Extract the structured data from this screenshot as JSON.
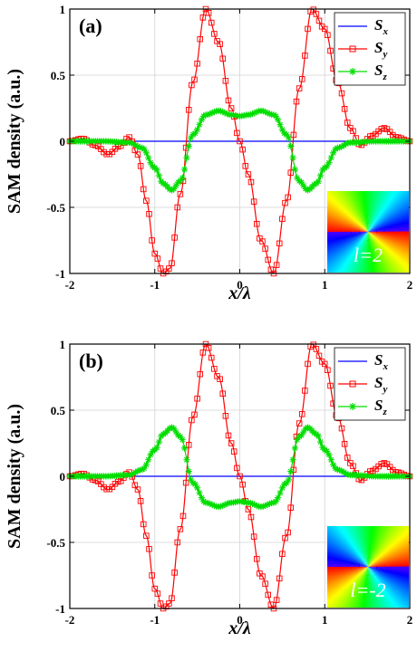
{
  "chart_data": [
    {
      "type": "line",
      "panel_label": "(a)",
      "xlabel": "x/λ",
      "ylabel": "SAM density (a.u.)",
      "xlim": [
        -2,
        2
      ],
      "ylim": [
        -1,
        1
      ],
      "xticks": [
        "-2",
        "-1",
        "0",
        "1",
        "2"
      ],
      "yticks": [
        "-1",
        "-0.5",
        "0",
        "0.5",
        "1"
      ],
      "grid": true,
      "legend_position": "top-right",
      "inset_label": "l=2",
      "l": 2,
      "series": [
        {
          "name": "Sx",
          "color": "#0000ff",
          "marker": "none",
          "x": [
            -2,
            2
          ],
          "y": [
            0,
            0
          ]
        },
        {
          "name": "Sy",
          "color": "#ff0000",
          "marker": "square",
          "x": [
            -2,
            -1.85,
            -1.7,
            -1.55,
            -1.42,
            -1.3,
            -1.2,
            -1.1,
            -1.0,
            -0.9,
            -0.82,
            -0.7,
            -0.55,
            -0.4,
            -0.25,
            -0.1,
            0.0,
            0.1,
            0.25,
            0.4,
            0.55,
            0.7,
            0.85,
            1.0,
            1.15,
            1.3,
            1.42,
            1.55,
            1.7,
            1.85,
            2
          ],
          "y": [
            0,
            0.02,
            -0.03,
            -0.1,
            -0.04,
            0.03,
            -0.1,
            -0.45,
            -0.85,
            -1.0,
            -0.96,
            -0.4,
            0.45,
            1.0,
            0.75,
            0.25,
            0.0,
            -0.25,
            -0.75,
            -1.0,
            -0.45,
            0.4,
            1.0,
            0.85,
            0.45,
            0.1,
            -0.03,
            0.04,
            0.1,
            0.03,
            0
          ]
        },
        {
          "name": "Sz",
          "color": "#00dd00",
          "marker": "star",
          "x": [
            -2,
            -1.6,
            -1.3,
            -1.15,
            -1.0,
            -0.9,
            -0.8,
            -0.7,
            -0.55,
            -0.4,
            -0.25,
            -0.1,
            0.0,
            0.1,
            0.25,
            0.4,
            0.55,
            0.7,
            0.8,
            0.9,
            1.0,
            1.15,
            1.3,
            1.6,
            2
          ],
          "y": [
            0,
            0,
            -0.01,
            -0.05,
            -0.2,
            -0.32,
            -0.37,
            -0.3,
            0.05,
            0.2,
            0.23,
            0.2,
            0.19,
            0.2,
            0.23,
            0.2,
            0.05,
            -0.3,
            -0.37,
            -0.32,
            -0.2,
            -0.05,
            -0.01,
            0,
            0
          ]
        }
      ]
    },
    {
      "type": "line",
      "panel_label": "(b)",
      "xlabel": "x/λ",
      "ylabel": "SAM density (a.u.)",
      "xlim": [
        -2,
        2
      ],
      "ylim": [
        -1,
        1
      ],
      "xticks": [
        "-2",
        "-1",
        "0",
        "1",
        "2"
      ],
      "yticks": [
        "-1",
        "-0.5",
        "0",
        "0.5",
        "1"
      ],
      "grid": true,
      "legend_position": "top-right",
      "inset_label": "l=-2",
      "l": -2,
      "series": [
        {
          "name": "Sx",
          "color": "#0000ff",
          "marker": "none",
          "x": [
            -2,
            2
          ],
          "y": [
            0,
            0
          ]
        },
        {
          "name": "Sy",
          "color": "#ff0000",
          "marker": "square",
          "x": [
            -2,
            -1.85,
            -1.7,
            -1.55,
            -1.42,
            -1.3,
            -1.2,
            -1.1,
            -1.0,
            -0.9,
            -0.82,
            -0.7,
            -0.55,
            -0.4,
            -0.25,
            -0.1,
            0.0,
            0.1,
            0.25,
            0.4,
            0.55,
            0.7,
            0.85,
            1.0,
            1.15,
            1.3,
            1.42,
            1.55,
            1.7,
            1.85,
            2
          ],
          "y": [
            0,
            0.02,
            -0.03,
            -0.1,
            -0.04,
            0.03,
            -0.1,
            -0.45,
            -0.85,
            -1.0,
            -0.96,
            -0.4,
            0.45,
            1.0,
            0.75,
            0.25,
            0.0,
            -0.25,
            -0.75,
            -1.0,
            -0.45,
            0.4,
            1.0,
            0.85,
            0.45,
            0.1,
            -0.03,
            0.04,
            0.1,
            0.03,
            0
          ]
        },
        {
          "name": "Sz",
          "color": "#00dd00",
          "marker": "star",
          "x": [
            -2,
            -1.6,
            -1.3,
            -1.15,
            -1.0,
            -0.9,
            -0.8,
            -0.7,
            -0.55,
            -0.4,
            -0.25,
            -0.1,
            0.0,
            0.1,
            0.25,
            0.4,
            0.55,
            0.7,
            0.8,
            0.9,
            1.0,
            1.15,
            1.3,
            1.6,
            2
          ],
          "y": [
            0,
            0,
            0.01,
            0.05,
            0.2,
            0.32,
            0.37,
            0.3,
            -0.05,
            -0.2,
            -0.23,
            -0.2,
            -0.19,
            -0.2,
            -0.23,
            -0.2,
            -0.05,
            0.3,
            0.37,
            0.32,
            0.2,
            0.05,
            0.01,
            0,
            0
          ]
        }
      ]
    }
  ]
}
